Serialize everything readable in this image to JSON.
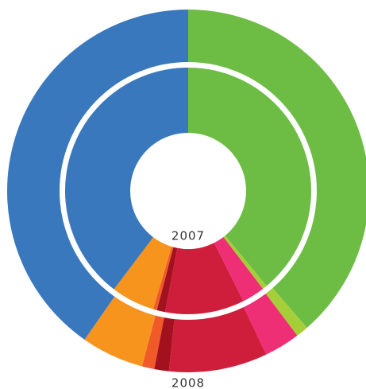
{
  "chart_data": {
    "type": "donut",
    "categories": [
      null,
      null,
      null,
      null,
      null,
      null,
      null,
      null
    ],
    "colors": [
      "#6dbd45",
      "#a6ce39",
      "#ee2f76",
      "#cf1e3c",
      "#a3111e",
      "#f05a28",
      "#f7941d",
      "#3a78be"
    ],
    "series": [
      {
        "name": "2007",
        "values": [
          39.0,
          0.6,
          3.0,
          10.4,
          1.1,
          0.5,
          5.7,
          39.7
        ]
      },
      {
        "name": "2008",
        "values": [
          38.6,
          1.1,
          3.2,
          8.8,
          1.3,
          1.1,
          5.6,
          40.3
        ]
      }
    ]
  }
}
